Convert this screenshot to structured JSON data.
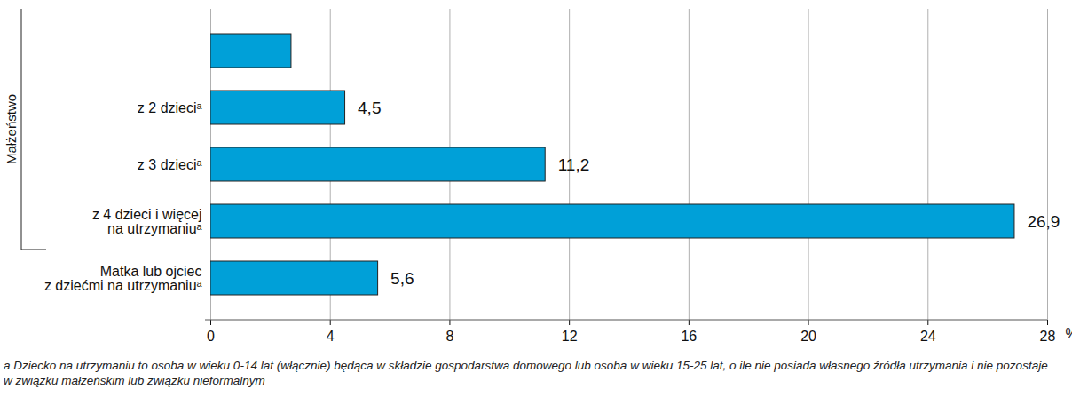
{
  "chart_data": {
    "type": "bar",
    "orientation": "horizontal",
    "group_label": "Małżeństwo",
    "categories": [
      null,
      "z 2 dzieciᵃ",
      "z 3 dzieciᵃ",
      "z 4 dzieci i więcej\nna utrzymaniuᵃ",
      "Matka lub ojciec\nz dziećmi na utrzymaniuᵃ"
    ],
    "values": [
      2.7,
      4.5,
      11.2,
      26.9,
      5.6
    ],
    "value_labels": [
      null,
      "4,5",
      "11,2",
      "26,9",
      "5,6"
    ],
    "data_labels": true,
    "color": "#00a0d8",
    "xlim": [
      0,
      28
    ],
    "xticks": [
      0,
      4,
      8,
      12,
      16,
      20,
      24,
      28
    ],
    "x_label": "%",
    "grid": true,
    "caption": "a Dziecko na utrzymaniu to osoba w wieku 0-14 lat (włącznie) będąca w składzie gospodarstwa domowego lub osoba w wieku 15-25 lat, o ile nie posiada własnego źródła utrzymania i nie pozostaje w związku małżeńskim lub związku nieformalnym"
  }
}
